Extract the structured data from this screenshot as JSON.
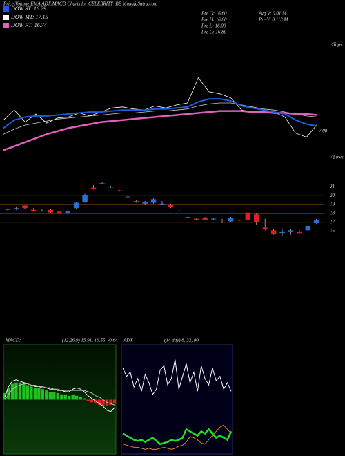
{
  "header": {
    "title": "Price,Volume,EMA,ADX,MACD Charts for CELEBRITY_BE MunafaSutra.com",
    "legend": [
      {
        "label": "DOW ST: 16.29",
        "color": "#1e5adc"
      },
      {
        "label": "DOW MT: 17.15",
        "color": "#ffffff"
      },
      {
        "label": "DOW PT: 16.74",
        "color": "#e060c0"
      }
    ],
    "stats": [
      "Pre O: 16.60",
      "Pre H: 16.80",
      "Pre L: 16.00",
      "Pre C: 16.80"
    ],
    "volume": [
      "Avg V: 0.01 M",
      "Pre V: 0.113 M"
    ]
  },
  "chart_data": [
    {
      "type": "line",
      "annotations": [
        "7.00",
        "<Tops",
        "<Lows"
      ],
      "ylim": [
        12,
        24
      ],
      "series": [
        {
          "color": "#ffffff",
          "width": 0.8,
          "values": [
            16.2,
            17.2,
            16.0,
            16.8,
            15.9,
            16.4,
            16.5,
            16.9,
            16.6,
            17.0,
            17.4,
            17.5,
            17.3,
            17.2,
            17.6,
            17.4,
            17.7,
            17.9,
            20.4,
            19.0,
            18.8,
            18.4,
            17.2,
            17.0,
            16.9,
            17.0,
            16.5,
            14.9,
            14.5,
            15.8
          ]
        },
        {
          "color": "#cccccc",
          "width": 0.8,
          "values": [
            14.8,
            15.3,
            15.7,
            15.9,
            16.1,
            16.3,
            16.4,
            16.5,
            16.6,
            16.7,
            16.8,
            16.9,
            16.9,
            17.0,
            17.1,
            17.1,
            17.2,
            17.3,
            17.6,
            17.8,
            17.9,
            17.9,
            17.7,
            17.5,
            17.3,
            17.2,
            17.0,
            16.8,
            16.6,
            16.5
          ]
        },
        {
          "color": "#e060c0",
          "width": 2.5,
          "values": [
            13.2,
            13.6,
            14.0,
            14.4,
            14.8,
            15.1,
            15.4,
            15.6,
            15.8,
            16.0,
            16.1,
            16.2,
            16.3,
            16.4,
            16.5,
            16.6,
            16.7,
            16.8,
            16.9,
            17.0,
            17.1,
            17.1,
            17.1,
            17.0,
            17.0,
            16.9,
            16.9,
            16.8,
            16.8,
            16.7
          ]
        },
        {
          "color": "#1e5adc",
          "width": 2,
          "values": [
            15.4,
            16.2,
            16.5,
            16.6,
            16.6,
            16.7,
            16.8,
            16.9,
            17.0,
            17.0,
            17.1,
            17.2,
            17.2,
            17.2,
            17.3,
            17.3,
            17.4,
            17.5,
            18.0,
            18.3,
            18.3,
            18.1,
            17.6,
            17.4,
            17.2,
            17.0,
            16.8,
            16.2,
            15.8,
            15.6
          ]
        }
      ]
    },
    {
      "type": "candlestick",
      "ylim": [
        14.8,
        22.2
      ],
      "yticks": [
        21,
        20,
        19,
        18,
        17,
        16
      ],
      "grid": true,
      "grid_color": "#c87020",
      "up_color": "#2a6fd6",
      "down_color": "#e02020",
      "open": [
        18.4,
        18.5,
        18.9,
        18.4,
        18.3,
        18.4,
        18.2,
        18.0,
        18.6,
        19.3,
        20.9,
        21.4,
        21.0,
        20.6,
        19.9,
        19.4,
        19.1,
        19.2,
        19.1,
        19.0,
        18.3,
        17.6,
        17.4,
        17.5,
        17.4,
        17.3,
        17.1,
        17.3,
        18.1,
        17.9,
        16.4,
        16.1,
        15.8,
        15.9,
        15.9,
        16.1,
        16.9
      ],
      "high": [
        18.6,
        18.7,
        18.9,
        18.6,
        18.5,
        18.5,
        18.3,
        18.4,
        19.3,
        20.2,
        21.2,
        21.5,
        21.1,
        20.7,
        20.1,
        19.5,
        19.4,
        19.7,
        19.4,
        19.1,
        18.4,
        17.7,
        17.5,
        17.6,
        17.5,
        17.4,
        17.6,
        17.3,
        18.2,
        18.0,
        17.4,
        16.2,
        16.3,
        16.2,
        16.1,
        16.8,
        17.4
      ],
      "low": [
        18.3,
        18.4,
        18.5,
        18.2,
        18.2,
        18.0,
        17.9,
        17.8,
        18.5,
        19.2,
        20.7,
        21.3,
        20.9,
        20.4,
        19.8,
        19.2,
        19.0,
        19.1,
        19.0,
        18.6,
        18.2,
        17.5,
        17.2,
        17.2,
        17.3,
        16.9,
        17.0,
        17.1,
        17.2,
        16.7,
        16.1,
        15.6,
        15.5,
        15.6,
        15.7,
        15.8,
        16.8
      ],
      "close": [
        18.5,
        18.6,
        18.6,
        18.3,
        18.3,
        18.1,
        18.0,
        18.3,
        19.2,
        20.1,
        20.8,
        21.4,
        21.0,
        20.5,
        19.9,
        19.3,
        19.3,
        19.6,
        19.1,
        18.7,
        18.3,
        17.6,
        17.3,
        17.3,
        17.4,
        17.2,
        17.5,
        17.2,
        17.3,
        17.0,
        16.2,
        15.7,
        15.9,
        16.1,
        15.8,
        16.6,
        17.3
      ]
    },
    {
      "type": "line",
      "title": "MACD:",
      "subtitle": "(12,26,9) 15.91, 16.55, -0.64",
      "ylim": [
        -4,
        4
      ],
      "series": [
        {
          "style": "bar",
          "color": "#20c020",
          "neg_color": "#e02020",
          "values": [
            0.5,
            0.9,
            1.2,
            1.3,
            1.3,
            1.2,
            1.1,
            1.0,
            0.9,
            0.9,
            0.8,
            0.7,
            0.6,
            0.6,
            0.5,
            0.4,
            0.4,
            0.3,
            0.4,
            0.3,
            0.2,
            0.1,
            -0.1,
            -0.2,
            -0.3,
            -0.4,
            -0.5,
            -0.5,
            -0.4,
            -0.3
          ]
        },
        {
          "color": "#ffffff",
          "width": 1,
          "values": [
            0.2,
            1.0,
            1.4,
            1.5,
            1.4,
            1.3,
            1.2,
            1.1,
            1.0,
            1.0,
            0.9,
            0.9,
            0.8,
            0.8,
            0.7,
            0.7,
            0.6,
            0.6,
            0.8,
            0.9,
            0.8,
            0.6,
            0.3,
            0.1,
            -0.1,
            -0.3,
            -0.5,
            -0.8,
            -0.9,
            -0.6
          ]
        },
        {
          "color": "#bbbbbb",
          "width": 1,
          "values": [
            0.0,
            0.4,
            0.8,
            1.0,
            1.1,
            1.2,
            1.2,
            1.1,
            1.1,
            1.0,
            1.0,
            0.9,
            0.9,
            0.8,
            0.8,
            0.7,
            0.7,
            0.7,
            0.7,
            0.7,
            0.7,
            0.7,
            0.6,
            0.5,
            0.3,
            0.2,
            0.0,
            -0.2,
            -0.3,
            -0.4
          ]
        }
      ]
    },
    {
      "type": "line",
      "title": "ADX",
      "subtitle": "(14 day) 8, 32, 80",
      "ylim": [
        0,
        100
      ],
      "series": [
        {
          "color": "#ffffff",
          "width": 1,
          "values": [
            80,
            72,
            76,
            62,
            70,
            58,
            74,
            66,
            55,
            60,
            78,
            82,
            64,
            70,
            88,
            60,
            72,
            84,
            66,
            76,
            58,
            82,
            70,
            64,
            80,
            68,
            72,
            60,
            66,
            58
          ]
        },
        {
          "color": "#20e020",
          "width": 2.5,
          "values": [
            18,
            16,
            14,
            12,
            11,
            12,
            10,
            12,
            14,
            11,
            8,
            9,
            10,
            12,
            11,
            12,
            14,
            22,
            20,
            18,
            16,
            20,
            18,
            22,
            18,
            14,
            16,
            14,
            12,
            20
          ]
        },
        {
          "color": "#e08020",
          "width": 1,
          "values": [
            8,
            7,
            6,
            5,
            5,
            4,
            3,
            4,
            3,
            3,
            4,
            5,
            4,
            3,
            4,
            6,
            7,
            10,
            15,
            14,
            12,
            9,
            8,
            12,
            16,
            20,
            24,
            26,
            22,
            18
          ]
        }
      ]
    }
  ]
}
